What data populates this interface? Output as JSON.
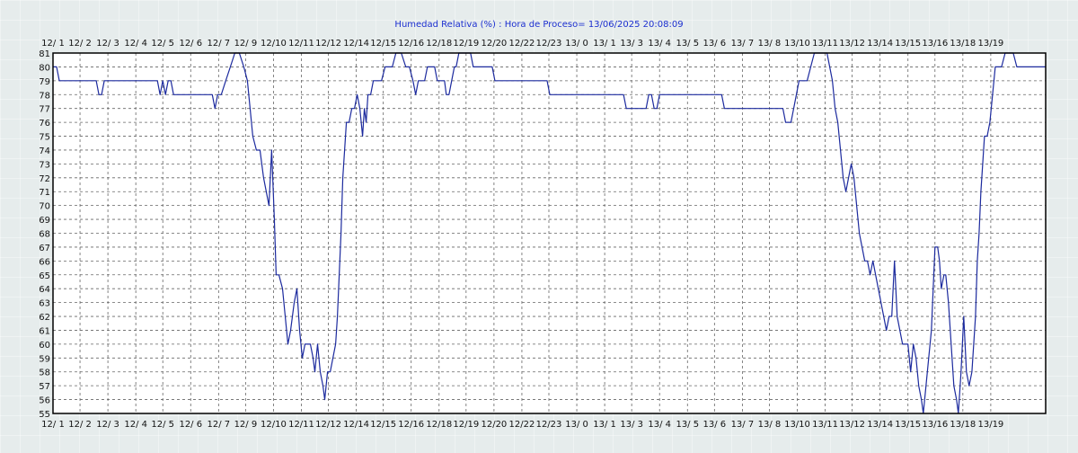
{
  "chart_data": {
    "type": "line",
    "title": "Humedad Relativa (%)  : Hora de Proceso= 13/06/2025 20:08:09",
    "xlabel": "",
    "ylabel": "",
    "ylim": [
      55,
      81
    ],
    "yticks": [
      55,
      56,
      57,
      58,
      59,
      60,
      61,
      62,
      63,
      64,
      65,
      66,
      67,
      68,
      69,
      70,
      71,
      72,
      73,
      74,
      75,
      76,
      77,
      78,
      79,
      80,
      81
    ],
    "xlim": [
      0,
      1103
    ],
    "xtick_labels": [
      {
        "t": 0,
        "label": "12/ 1"
      },
      {
        "t": 30,
        "label": "12/ 2"
      },
      {
        "t": 61,
        "label": "12/ 3"
      },
      {
        "t": 92,
        "label": "12/ 4"
      },
      {
        "t": 122,
        "label": "12/ 5"
      },
      {
        "t": 153,
        "label": "12/ 6"
      },
      {
        "t": 184,
        "label": "12/ 7"
      },
      {
        "t": 214,
        "label": "12/ 9"
      },
      {
        "t": 245,
        "label": "12/10"
      },
      {
        "t": 276,
        "label": "12/11"
      },
      {
        "t": 306,
        "label": "12/12"
      },
      {
        "t": 337,
        "label": "12/14"
      },
      {
        "t": 367,
        "label": "12/15"
      },
      {
        "t": 398,
        "label": "12/16"
      },
      {
        "t": 429,
        "label": "12/18"
      },
      {
        "t": 459,
        "label": "12/19"
      },
      {
        "t": 490,
        "label": "12/20"
      },
      {
        "t": 521,
        "label": "12/22"
      },
      {
        "t": 551,
        "label": "12/23"
      },
      {
        "t": 582,
        "label": "13/ 0"
      },
      {
        "t": 613,
        "label": "13/ 1"
      },
      {
        "t": 643,
        "label": "13/ 3"
      },
      {
        "t": 674,
        "label": "13/ 4"
      },
      {
        "t": 705,
        "label": "13/ 5"
      },
      {
        "t": 735,
        "label": "13/ 6"
      },
      {
        "t": 766,
        "label": "13/ 7"
      },
      {
        "t": 796,
        "label": "13/ 8"
      },
      {
        "t": 827,
        "label": "13/10"
      },
      {
        "t": 858,
        "label": "13/11"
      },
      {
        "t": 888,
        "label": "13/12"
      },
      {
        "t": 919,
        "label": "13/14"
      },
      {
        "t": 950,
        "label": "13/15"
      },
      {
        "t": 980,
        "label": "13/16"
      },
      {
        "t": 1011,
        "label": "13/18"
      },
      {
        "t": 1042,
        "label": "13/19"
      }
    ],
    "series": [
      {
        "color": "#1c2a9e",
        "points": [
          [
            0,
            80
          ],
          [
            4,
            80
          ],
          [
            7,
            79
          ],
          [
            10,
            79
          ],
          [
            20,
            79
          ],
          [
            30,
            79
          ],
          [
            40,
            79
          ],
          [
            48,
            79
          ],
          [
            51,
            78
          ],
          [
            54,
            78
          ],
          [
            57,
            79
          ],
          [
            60,
            79
          ],
          [
            70,
            79
          ],
          [
            80,
            79
          ],
          [
            90,
            79
          ],
          [
            100,
            79
          ],
          [
            110,
            79
          ],
          [
            116,
            79
          ],
          [
            119,
            78
          ],
          [
            122,
            79
          ],
          [
            125,
            78
          ],
          [
            128,
            79
          ],
          [
            131,
            79
          ],
          [
            134,
            78
          ],
          [
            140,
            78
          ],
          [
            150,
            78
          ],
          [
            160,
            78
          ],
          [
            170,
            78
          ],
          [
            177,
            78
          ],
          [
            180,
            77
          ],
          [
            183,
            78
          ],
          [
            187,
            78
          ],
          [
            192,
            79
          ],
          [
            197,
            80
          ],
          [
            202,
            81
          ],
          [
            207,
            81
          ],
          [
            212,
            80
          ],
          [
            216,
            79
          ],
          [
            219,
            77
          ],
          [
            222,
            75
          ],
          [
            226,
            74
          ],
          [
            230,
            74
          ],
          [
            234,
            72
          ],
          [
            237,
            71
          ],
          [
            240,
            70
          ],
          [
            243,
            74
          ],
          [
            246,
            69
          ],
          [
            248,
            65
          ],
          [
            251,
            65
          ],
          [
            255,
            64
          ],
          [
            258,
            62
          ],
          [
            261,
            60
          ],
          [
            264,
            61
          ],
          [
            268,
            63
          ],
          [
            271,
            64
          ],
          [
            274,
            61
          ],
          [
            277,
            59
          ],
          [
            280,
            60
          ],
          [
            283,
            60
          ],
          [
            286,
            60
          ],
          [
            289,
            59
          ],
          [
            291,
            58
          ],
          [
            294,
            60
          ],
          [
            297,
            58
          ],
          [
            300,
            57
          ],
          [
            302,
            56
          ],
          [
            305,
            58
          ],
          [
            308,
            58
          ],
          [
            311,
            59
          ],
          [
            314,
            60
          ],
          [
            316,
            62
          ],
          [
            318,
            65
          ],
          [
            320,
            68
          ],
          [
            322,
            72
          ],
          [
            324,
            74
          ],
          [
            326,
            76
          ],
          [
            329,
            76
          ],
          [
            332,
            77
          ],
          [
            335,
            77
          ],
          [
            338,
            78
          ],
          [
            341,
            77
          ],
          [
            344,
            75
          ],
          [
            346,
            77
          ],
          [
            348,
            76
          ],
          [
            350,
            78
          ],
          [
            353,
            78
          ],
          [
            356,
            79
          ],
          [
            360,
            79
          ],
          [
            365,
            79
          ],
          [
            369,
            80
          ],
          [
            373,
            80
          ],
          [
            377,
            80
          ],
          [
            381,
            81
          ],
          [
            387,
            81
          ],
          [
            392,
            80
          ],
          [
            396,
            80
          ],
          [
            400,
            79
          ],
          [
            403,
            78
          ],
          [
            406,
            79
          ],
          [
            409,
            79
          ],
          [
            413,
            79
          ],
          [
            416,
            80
          ],
          [
            420,
            80
          ],
          [
            424,
            80
          ],
          [
            427,
            79
          ],
          [
            431,
            79
          ],
          [
            435,
            79
          ],
          [
            437,
            78
          ],
          [
            440,
            78
          ],
          [
            443,
            79
          ],
          [
            446,
            80
          ],
          [
            448,
            80
          ],
          [
            451,
            81
          ],
          [
            454,
            81
          ],
          [
            459,
            81
          ],
          [
            464,
            81
          ],
          [
            467,
            80
          ],
          [
            472,
            80
          ],
          [
            477,
            80
          ],
          [
            482,
            80
          ],
          [
            488,
            80
          ],
          [
            491,
            79
          ],
          [
            495,
            79
          ],
          [
            505,
            79
          ],
          [
            515,
            79
          ],
          [
            525,
            79
          ],
          [
            535,
            79
          ],
          [
            545,
            79
          ],
          [
            549,
            79
          ],
          [
            552,
            78
          ],
          [
            560,
            78
          ],
          [
            570,
            78
          ],
          [
            580,
            78
          ],
          [
            590,
            78
          ],
          [
            600,
            78
          ],
          [
            610,
            78
          ],
          [
            620,
            78
          ],
          [
            625,
            78
          ],
          [
            630,
            78
          ],
          [
            634,
            78
          ],
          [
            637,
            77
          ],
          [
            644,
            77
          ],
          [
            650,
            77
          ],
          [
            655,
            77
          ],
          [
            659,
            77
          ],
          [
            662,
            78
          ],
          [
            665,
            78
          ],
          [
            668,
            77
          ],
          [
            671,
            77
          ],
          [
            674,
            78
          ],
          [
            680,
            78
          ],
          [
            690,
            78
          ],
          [
            700,
            78
          ],
          [
            710,
            78
          ],
          [
            720,
            78
          ],
          [
            730,
            78
          ],
          [
            740,
            78
          ],
          [
            743,
            78
          ],
          [
            746,
            77
          ],
          [
            750,
            77
          ],
          [
            760,
            77
          ],
          [
            770,
            77
          ],
          [
            780,
            77
          ],
          [
            790,
            77
          ],
          [
            800,
            77
          ],
          [
            808,
            77
          ],
          [
            811,
            77
          ],
          [
            814,
            76
          ],
          [
            820,
            76
          ],
          [
            823,
            77
          ],
          [
            826,
            78
          ],
          [
            829,
            79
          ],
          [
            833,
            79
          ],
          [
            838,
            79
          ],
          [
            842,
            80
          ],
          [
            846,
            81
          ],
          [
            850,
            81
          ],
          [
            856,
            81
          ],
          [
            860,
            81
          ],
          [
            863,
            80
          ],
          [
            866,
            79
          ],
          [
            869,
            77
          ],
          [
            872,
            76
          ],
          [
            875,
            74
          ],
          [
            878,
            72
          ],
          [
            881,
            71
          ],
          [
            884,
            72
          ],
          [
            887,
            73
          ],
          [
            890,
            72
          ],
          [
            893,
            70
          ],
          [
            896,
            68
          ],
          [
            899,
            67
          ],
          [
            902,
            66
          ],
          [
            905,
            66
          ],
          [
            908,
            65
          ],
          [
            911,
            66
          ],
          [
            914,
            65
          ],
          [
            917,
            64
          ],
          [
            920,
            63
          ],
          [
            923,
            62
          ],
          [
            926,
            61
          ],
          [
            929,
            62
          ],
          [
            932,
            62
          ],
          [
            935,
            66
          ],
          [
            938,
            62
          ],
          [
            941,
            61
          ],
          [
            944,
            60
          ],
          [
            947,
            60
          ],
          [
            950,
            60
          ],
          [
            953,
            58
          ],
          [
            956,
            60
          ],
          [
            959,
            59
          ],
          [
            962,
            57
          ],
          [
            965,
            56
          ],
          [
            967,
            55
          ],
          [
            970,
            57
          ],
          [
            973,
            59
          ],
          [
            976,
            61
          ],
          [
            978,
            64
          ],
          [
            980,
            67
          ],
          [
            983,
            67
          ],
          [
            985,
            66
          ],
          [
            987,
            64
          ],
          [
            990,
            65
          ],
          [
            992,
            65
          ],
          [
            995,
            63
          ],
          [
            998,
            60
          ],
          [
            1001,
            57
          ],
          [
            1004,
            56
          ],
          [
            1006,
            55
          ],
          [
            1009,
            58
          ],
          [
            1012,
            62
          ],
          [
            1015,
            58
          ],
          [
            1018,
            57
          ],
          [
            1021,
            58
          ],
          [
            1023,
            60
          ],
          [
            1025,
            62
          ],
          [
            1027,
            66
          ],
          [
            1029,
            68
          ],
          [
            1031,
            71
          ],
          [
            1033,
            73
          ],
          [
            1035,
            75
          ],
          [
            1038,
            75
          ],
          [
            1041,
            76
          ],
          [
            1044,
            78
          ],
          [
            1047,
            80
          ],
          [
            1050,
            80
          ],
          [
            1054,
            80
          ],
          [
            1058,
            81
          ],
          [
            1063,
            81
          ],
          [
            1067,
            81
          ],
          [
            1071,
            80
          ],
          [
            1074,
            80
          ],
          [
            1080,
            80
          ],
          [
            1090,
            80
          ],
          [
            1100,
            80
          ],
          [
            1103,
            80
          ]
        ]
      }
    ]
  }
}
